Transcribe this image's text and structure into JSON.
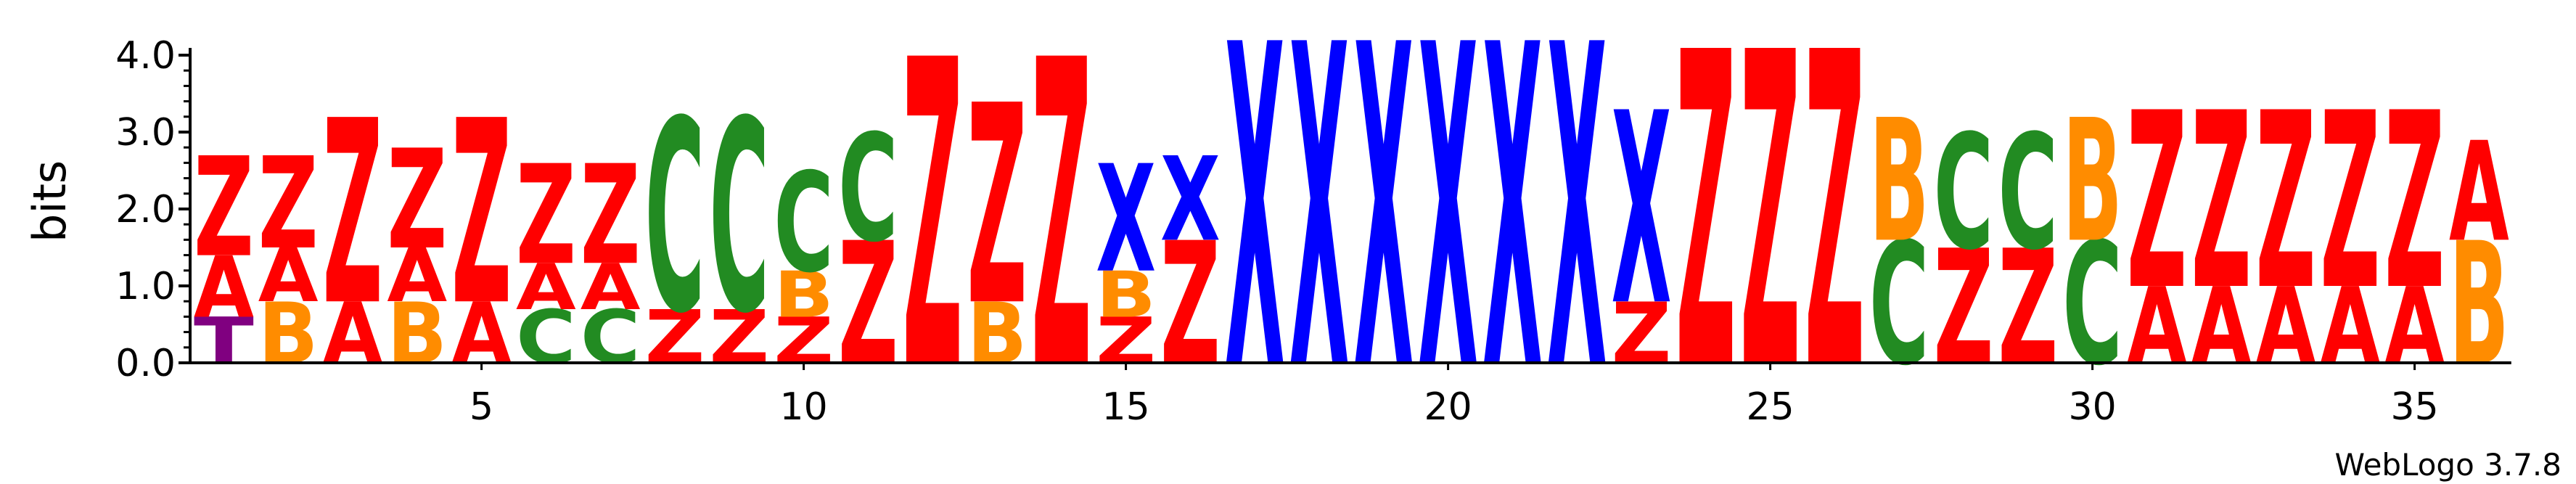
{
  "chart_data": {
    "type": "sequence-logo",
    "ylabel": "bits",
    "ylim": [
      0,
      4.0
    ],
    "y_ticks": [
      "0.0",
      "1.0",
      "2.0",
      "3.0",
      "4.0"
    ],
    "x_ticks": [
      "5",
      "10",
      "15",
      "20",
      "25",
      "30",
      "35"
    ],
    "x_tick_positions": [
      5,
      10,
      15,
      20,
      25,
      30,
      35
    ],
    "positions": 36,
    "footer": "WebLogo 3.7.8",
    "colors": {
      "Z": "#ff0000",
      "A": "#ff0000",
      "X": "#0000ff",
      "C": "#228b22",
      "B": "#ff8c00",
      "T": "#800080"
    },
    "columns": [
      {
        "pos": 1,
        "stack": [
          {
            "l": "T",
            "h": 0.6
          },
          {
            "l": "A",
            "h": 0.8
          },
          {
            "l": "Z",
            "h": 1.3
          }
        ]
      },
      {
        "pos": 2,
        "stack": [
          {
            "l": "B",
            "h": 0.8
          },
          {
            "l": "A",
            "h": 0.7
          },
          {
            "l": "Z",
            "h": 1.2
          }
        ]
      },
      {
        "pos": 3,
        "stack": [
          {
            "l": "A",
            "h": 0.8
          },
          {
            "l": "Z",
            "h": 2.4
          }
        ]
      },
      {
        "pos": 4,
        "stack": [
          {
            "l": "B",
            "h": 0.8
          },
          {
            "l": "A",
            "h": 0.7
          },
          {
            "l": "Z",
            "h": 1.3
          }
        ]
      },
      {
        "pos": 5,
        "stack": [
          {
            "l": "A",
            "h": 0.8
          },
          {
            "l": "Z",
            "h": 2.4
          }
        ]
      },
      {
        "pos": 6,
        "stack": [
          {
            "l": "C",
            "h": 0.7
          },
          {
            "l": "A",
            "h": 0.6
          },
          {
            "l": "Z",
            "h": 1.3
          }
        ]
      },
      {
        "pos": 7,
        "stack": [
          {
            "l": "C",
            "h": 0.7
          },
          {
            "l": "A",
            "h": 0.6
          },
          {
            "l": "Z",
            "h": 1.3
          }
        ]
      },
      {
        "pos": 8,
        "stack": [
          {
            "l": "Z",
            "h": 0.7
          },
          {
            "l": "C",
            "h": 2.5
          }
        ]
      },
      {
        "pos": 9,
        "stack": [
          {
            "l": "Z",
            "h": 0.7
          },
          {
            "l": "C",
            "h": 2.5
          }
        ]
      },
      {
        "pos": 10,
        "stack": [
          {
            "l": "Z",
            "h": 0.6
          },
          {
            "l": "B",
            "h": 0.6
          },
          {
            "l": "C",
            "h": 1.3
          }
        ]
      },
      {
        "pos": 11,
        "stack": [
          {
            "l": "Z",
            "h": 1.6
          },
          {
            "l": "C",
            "h": 1.4
          }
        ]
      },
      {
        "pos": 12,
        "stack": [
          {
            "l": "Z",
            "h": 4.0
          }
        ]
      },
      {
        "pos": 13,
        "stack": [
          {
            "l": "B",
            "h": 0.8
          },
          {
            "l": "Z",
            "h": 2.6
          }
        ]
      },
      {
        "pos": 14,
        "stack": [
          {
            "l": "Z",
            "h": 4.0
          }
        ]
      },
      {
        "pos": 15,
        "stack": [
          {
            "l": "Z",
            "h": 0.6
          },
          {
            "l": "B",
            "h": 0.6
          },
          {
            "l": "X",
            "h": 1.4
          }
        ]
      },
      {
        "pos": 16,
        "stack": [
          {
            "l": "Z",
            "h": 1.6
          },
          {
            "l": "X",
            "h": 1.1
          }
        ]
      },
      {
        "pos": 17,
        "stack": [
          {
            "l": "X",
            "h": 4.2
          }
        ]
      },
      {
        "pos": 18,
        "stack": [
          {
            "l": "X",
            "h": 4.2
          }
        ]
      },
      {
        "pos": 19,
        "stack": [
          {
            "l": "X",
            "h": 4.2
          }
        ]
      },
      {
        "pos": 20,
        "stack": [
          {
            "l": "X",
            "h": 4.2
          }
        ]
      },
      {
        "pos": 21,
        "stack": [
          {
            "l": "X",
            "h": 4.2
          }
        ]
      },
      {
        "pos": 22,
        "stack": [
          {
            "l": "X",
            "h": 4.2
          }
        ]
      },
      {
        "pos": 23,
        "stack": [
          {
            "l": "Z",
            "h": 0.8
          },
          {
            "l": "X",
            "h": 2.5
          }
        ]
      },
      {
        "pos": 24,
        "stack": [
          {
            "l": "Z",
            "h": 4.1
          }
        ]
      },
      {
        "pos": 25,
        "stack": [
          {
            "l": "Z",
            "h": 4.1
          }
        ]
      },
      {
        "pos": 26,
        "stack": [
          {
            "l": "Z",
            "h": 4.1
          }
        ]
      },
      {
        "pos": 27,
        "stack": [
          {
            "l": "C",
            "h": 1.6
          },
          {
            "l": "B",
            "h": 1.6
          }
        ]
      },
      {
        "pos": 28,
        "stack": [
          {
            "l": "Z",
            "h": 1.5
          },
          {
            "l": "C",
            "h": 1.5
          }
        ]
      },
      {
        "pos": 29,
        "stack": [
          {
            "l": "Z",
            "h": 1.5
          },
          {
            "l": "C",
            "h": 1.5
          }
        ]
      },
      {
        "pos": 30,
        "stack": [
          {
            "l": "C",
            "h": 1.6
          },
          {
            "l": "B",
            "h": 1.6
          }
        ]
      },
      {
        "pos": 31,
        "stack": [
          {
            "l": "A",
            "h": 1.0
          },
          {
            "l": "Z",
            "h": 2.3
          }
        ]
      },
      {
        "pos": 32,
        "stack": [
          {
            "l": "A",
            "h": 1.0
          },
          {
            "l": "Z",
            "h": 2.3
          }
        ]
      },
      {
        "pos": 33,
        "stack": [
          {
            "l": "A",
            "h": 1.0
          },
          {
            "l": "Z",
            "h": 2.3
          }
        ]
      },
      {
        "pos": 34,
        "stack": [
          {
            "l": "A",
            "h": 1.0
          },
          {
            "l": "Z",
            "h": 2.3
          }
        ]
      },
      {
        "pos": 35,
        "stack": [
          {
            "l": "A",
            "h": 1.0
          },
          {
            "l": "Z",
            "h": 2.3
          }
        ]
      },
      {
        "pos": 36,
        "stack": [
          {
            "l": "B",
            "h": 1.6
          },
          {
            "l": "A",
            "h": 1.3
          }
        ]
      }
    ]
  }
}
